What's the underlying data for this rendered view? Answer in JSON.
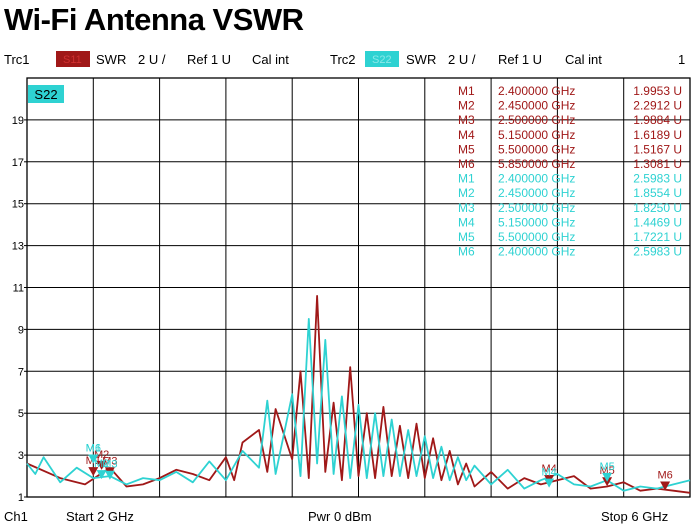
{
  "page": {
    "title": "Wi-Fi Antenna VSWR"
  },
  "trace_bar": {
    "trc1": {
      "label": "Trc1",
      "badge": "S11",
      "format": "SWR",
      "scale": "2 U /",
      "ref": "Ref 1 U",
      "cal": "Cal int"
    },
    "trc2": {
      "label": "Trc2",
      "badge": "S22",
      "format": "SWR",
      "scale": "2 U /",
      "ref": "Ref 1 U",
      "cal": "Cal int"
    },
    "window_number": "1"
  },
  "footer": {
    "channel": "Ch1",
    "start": "Start  2 GHz",
    "power": "Pwr  0 dBm",
    "stop": "Stop  6 GHz"
  },
  "colors": {
    "trc1": "#a01818",
    "trc2": "#2ed2d2",
    "grid": "#000000"
  },
  "chart_data": {
    "type": "line",
    "active_trace_label": "S22",
    "x_unit": "GHz",
    "xlim": [
      2,
      6
    ],
    "ylim": [
      1,
      21
    ],
    "ytick_labels": [
      "1",
      "3",
      "5",
      "7",
      "9",
      "11",
      "13",
      "15",
      "17",
      "19"
    ],
    "grid": true,
    "series": [
      {
        "name": "Trc1",
        "x": [
          2.0,
          2.2,
          2.35,
          2.5,
          2.6,
          2.7,
          2.8,
          2.9,
          3.0,
          3.1,
          3.2,
          3.25,
          3.3,
          3.4,
          3.45,
          3.5,
          3.6,
          3.65,
          3.7,
          3.75,
          3.8,
          3.85,
          3.9,
          3.95,
          4.0,
          4.05,
          4.1,
          4.15,
          4.2,
          4.25,
          4.3,
          4.35,
          4.4,
          4.45,
          4.5,
          4.55,
          4.6,
          4.65,
          4.7,
          4.8,
          4.9,
          5.0,
          5.1,
          5.2,
          5.3,
          5.4,
          5.5,
          5.6,
          5.7,
          5.8,
          5.9,
          6.0
        ],
        "y": [
          2.6,
          1.9,
          1.6,
          2.4,
          1.5,
          1.6,
          1.9,
          2.3,
          2.1,
          1.8,
          2.9,
          1.8,
          3.6,
          4.2,
          2.2,
          5.2,
          2.8,
          7.0,
          1.9,
          10.6,
          2.2,
          5.5,
          1.8,
          7.2,
          2.0,
          5.0,
          1.9,
          5.3,
          2.0,
          4.4,
          1.9,
          4.5,
          1.9,
          3.8,
          1.8,
          3.2,
          1.6,
          2.6,
          1.5,
          2.2,
          1.4,
          1.9,
          1.6,
          1.8,
          2.0,
          1.4,
          1.5,
          1.7,
          1.3,
          1.4,
          1.3,
          1.2
        ]
      },
      {
        "name": "Trc2",
        "x": [
          2.0,
          2.05,
          2.1,
          2.2,
          2.3,
          2.4,
          2.5,
          2.6,
          2.7,
          2.8,
          2.9,
          3.0,
          3.1,
          3.2,
          3.3,
          3.4,
          3.45,
          3.5,
          3.6,
          3.65,
          3.7,
          3.75,
          3.8,
          3.85,
          3.9,
          3.95,
          4.0,
          4.05,
          4.1,
          4.15,
          4.2,
          4.25,
          4.3,
          4.35,
          4.4,
          4.45,
          4.5,
          4.55,
          4.6,
          4.65,
          4.7,
          4.8,
          4.9,
          5.0,
          5.1,
          5.2,
          5.3,
          5.4,
          5.5,
          5.6,
          5.7,
          5.8,
          5.9,
          6.0
        ],
        "y": [
          2.6,
          2.1,
          2.9,
          1.7,
          2.4,
          1.9,
          2.0,
          1.6,
          1.9,
          1.8,
          2.2,
          1.7,
          2.7,
          1.8,
          3.2,
          2.4,
          5.6,
          2.1,
          5.9,
          2.0,
          9.5,
          2.6,
          8.5,
          2.1,
          5.8,
          1.9,
          5.4,
          1.9,
          5.0,
          2.0,
          4.7,
          2.0,
          4.2,
          2.0,
          3.9,
          1.9,
          3.4,
          1.8,
          2.9,
          1.8,
          2.5,
          1.6,
          2.3,
          1.4,
          1.8,
          2.1,
          1.6,
          1.5,
          1.8,
          1.3,
          1.5,
          1.4,
          1.6,
          1.8
        ]
      }
    ],
    "markers": [
      {
        "trace": "Trc1",
        "label": "M1",
        "x": 2.4,
        "y": 1.9953,
        "freq_text": "2.400000 GHz",
        "value_text": "1.9953 U"
      },
      {
        "trace": "Trc1",
        "label": "M2",
        "x": 2.45,
        "y": 2.2912,
        "freq_text": "2.450000 GHz",
        "value_text": "2.2912 U"
      },
      {
        "trace": "Trc1",
        "label": "M3",
        "x": 2.5,
        "y": 1.9884,
        "freq_text": "2.500000 GHz",
        "value_text": "1.9884 U"
      },
      {
        "trace": "Trc1",
        "label": "M4",
        "x": 5.15,
        "y": 1.6189,
        "freq_text": "5.150000 GHz",
        "value_text": "1.6189 U"
      },
      {
        "trace": "Trc1",
        "label": "M5",
        "x": 5.5,
        "y": 1.5167,
        "freq_text": "5.500000 GHz",
        "value_text": "1.5167 U"
      },
      {
        "trace": "Trc1",
        "label": "M6",
        "x": 5.85,
        "y": 1.3081,
        "freq_text": "5.850000 GHz",
        "value_text": "1.3081 U"
      },
      {
        "trace": "Trc2",
        "label": "M1",
        "x": 2.4,
        "y": 2.5983,
        "freq_text": "2.400000 GHz",
        "value_text": "2.5983 U"
      },
      {
        "trace": "Trc2",
        "label": "M2",
        "x": 2.45,
        "y": 1.8554,
        "freq_text": "2.450000 GHz",
        "value_text": "1.8554 U"
      },
      {
        "trace": "Trc2",
        "label": "M3",
        "x": 2.5,
        "y": 1.825,
        "freq_text": "2.500000 GHz",
        "value_text": "1.8250 U"
      },
      {
        "trace": "Trc2",
        "label": "M4",
        "x": 5.15,
        "y": 1.4469,
        "freq_text": "5.150000 GHz",
        "value_text": "1.4469 U"
      },
      {
        "trace": "Trc2",
        "label": "M5",
        "x": 5.5,
        "y": 1.7221,
        "freq_text": "5.500000 GHz",
        "value_text": "1.7221 U"
      },
      {
        "trace": "Trc2",
        "label": "M6",
        "x": 2.4,
        "y": 2.5983,
        "freq_text": "2.400000 GHz",
        "value_text": "2.5983 U"
      }
    ]
  }
}
